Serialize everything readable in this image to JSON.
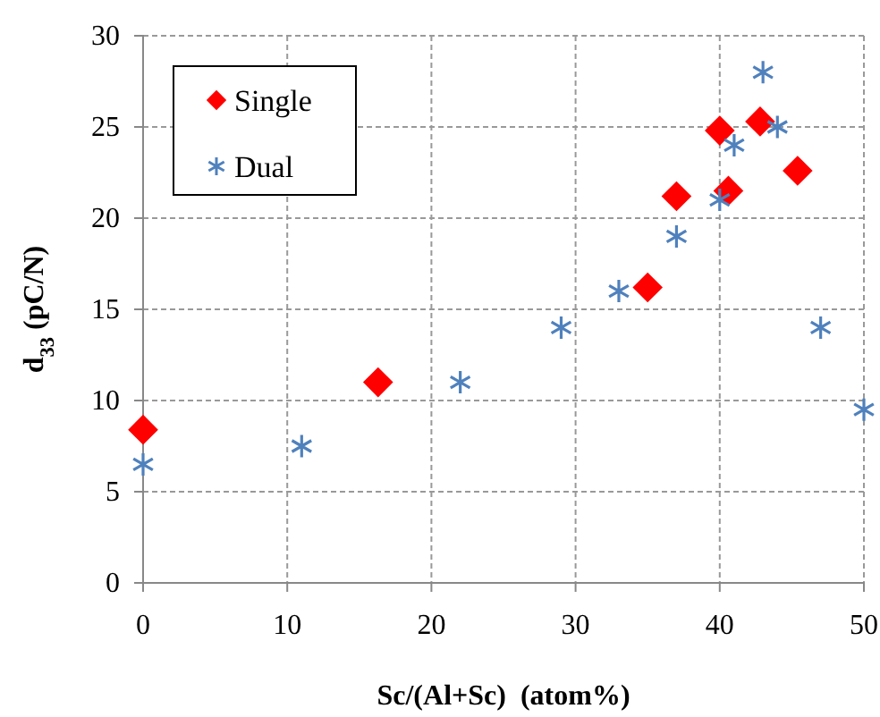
{
  "chart_data": {
    "type": "scatter",
    "xlabel": "Sc/(Al+Sc)  (atom%)",
    "ylabel": "d$_{33}$ (pC/N)",
    "xlim": [
      0,
      50
    ],
    "xticks": [
      0,
      10,
      20,
      30,
      40,
      50
    ],
    "ylim": [
      0,
      30
    ],
    "yticks": [
      0,
      5,
      10,
      15,
      20,
      25,
      30
    ],
    "grid": true,
    "legend": "top left",
    "series": [
      {
        "name": "Single",
        "color": "#ff0000",
        "marker": "diamond",
        "x": [
          0,
          16.3,
          35,
          37,
          40,
          40.6,
          42.8,
          45.4
        ],
        "values": [
          8.4,
          11,
          16.2,
          21.2,
          24.8,
          21.5,
          25.3,
          22.6
        ]
      },
      {
        "name": "Dual",
        "color": "#4f81bd",
        "marker": "cross",
        "x": [
          0,
          11,
          22,
          29,
          33,
          37,
          40,
          41,
          43,
          44,
          47,
          50
        ],
        "values": [
          6.5,
          7.5,
          11,
          14,
          16,
          19,
          21,
          24,
          28,
          25,
          14,
          9.5
        ]
      }
    ]
  }
}
